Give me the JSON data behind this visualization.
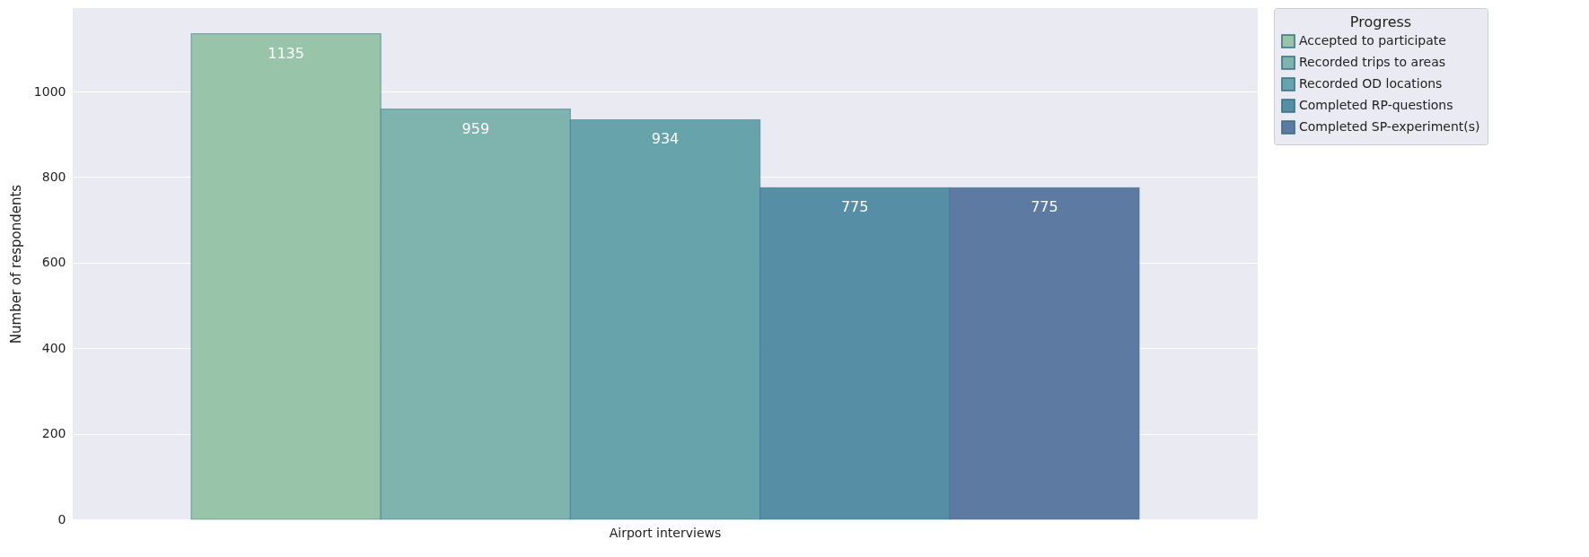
{
  "chart_data": {
    "type": "bar",
    "ylabel": "Number of respondents",
    "legend_title": "Progress",
    "categories": [
      "Airport interviews"
    ],
    "series": [
      {
        "name": "Accepted to participate",
        "color": "#98c5aa",
        "values": [
          1135
        ]
      },
      {
        "name": "Recorded trips to areas",
        "color": "#7fb4ae",
        "values": [
          959
        ]
      },
      {
        "name": "Recorded OD locations",
        "color": "#67a3ab",
        "values": [
          934
        ]
      },
      {
        "name": "Completed RP-questions",
        "color": "#558ea5",
        "values": [
          775
        ]
      },
      {
        "name": "Completed SP-experiment(s)",
        "color": "#5d7ba2",
        "values": [
          775
        ]
      }
    ],
    "ylim": [
      0,
      1195
    ],
    "yticks": [
      0,
      200,
      400,
      600,
      800,
      1000
    ],
    "grid": "y",
    "legend": "right",
    "data_labels": true
  }
}
